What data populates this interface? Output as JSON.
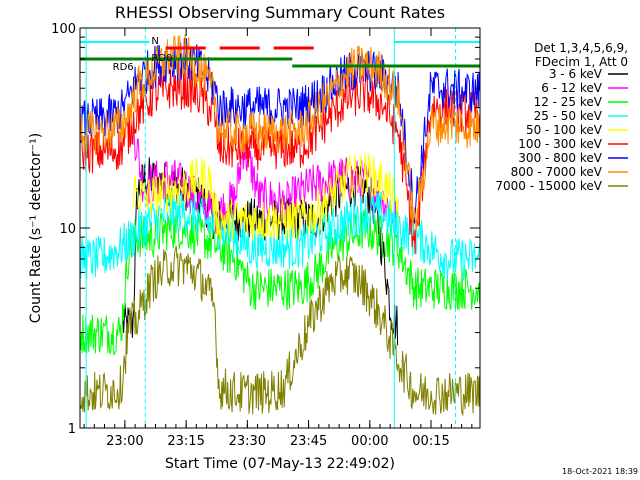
{
  "chart_data": {
    "type": "line",
    "title": "RHESSI Observing Summary Count Rates",
    "xlabel": "Start Time (07-May-13 22:49:02)",
    "ylabel": "Count Rate (s⁻¹ detector⁻¹)",
    "x_ticks": [
      "23:00",
      "23:15",
      "23:30",
      "23:45",
      "00:00",
      "00:15"
    ],
    "x_tick_minutes": [
      11,
      26,
      41,
      56,
      71,
      86
    ],
    "xlim_minutes": [
      0,
      98
    ],
    "yscale": "log",
    "ylim": [
      1,
      100
    ],
    "y_ticks": [
      1,
      10,
      100
    ],
    "y_tick_labels": [
      "1",
      "10",
      "100"
    ],
    "legend_header": [
      "Det 1,3,4,5,6,9,",
      "FDecim 1, Att 0"
    ],
    "legend_placement": "right",
    "annotations": [
      "N",
      "RD0",
      "RD6"
    ],
    "timestamp": "18-Oct-2021 18:39",
    "series": [
      {
        "name": "3 - 6 keV",
        "color": "#000000",
        "x": [
          10.5,
          13,
          14,
          16,
          20,
          25,
          30,
          33,
          34,
          36,
          38,
          40,
          42,
          46,
          50,
          52,
          54,
          56,
          58,
          62,
          66,
          70,
          72,
          74,
          75,
          76,
          77,
          78
        ],
        "y": [
          3.3,
          3.3,
          15,
          18,
          17,
          16,
          14,
          11,
          11,
          11,
          11,
          11,
          11,
          11,
          11,
          11,
          11,
          11,
          11,
          14,
          16,
          16,
          13,
          8,
          6,
          4,
          3.5,
          3.2
        ]
      },
      {
        "name": "6 - 12 keV",
        "color": "#ff00ff",
        "x": [
          13,
          14,
          15,
          16,
          18,
          22,
          26,
          30,
          32,
          33,
          34,
          36,
          38,
          40,
          42,
          44,
          46,
          48,
          50,
          52,
          56,
          60,
          64,
          70,
          74,
          78
        ],
        "y": [
          30,
          26,
          18,
          16,
          17,
          18,
          16,
          13,
          12,
          12,
          12,
          13,
          14,
          25,
          20,
          14,
          14,
          14,
          13,
          14,
          16,
          17,
          18,
          17,
          14,
          11
        ]
      },
      {
        "name": "12 - 25 keV",
        "color": "#00ff00",
        "x": [
          0,
          5,
          10,
          12,
          14,
          18,
          22,
          26,
          30,
          34,
          38,
          40,
          42,
          46,
          50,
          54,
          58,
          62,
          66,
          70,
          74,
          78,
          82,
          86,
          90,
          94,
          98
        ],
        "y": [
          3,
          3,
          3,
          8,
          9,
          9,
          10,
          10,
          9,
          8,
          7,
          6,
          5,
          5,
          5,
          5,
          6,
          8,
          9,
          10,
          9,
          8,
          5,
          5,
          5,
          5,
          5
        ]
      },
      {
        "name": "25 - 50 keV",
        "color": "#00ffff",
        "x": [
          0,
          5,
          10,
          13,
          15,
          18,
          22,
          26,
          30,
          34,
          38,
          42,
          46,
          50,
          54,
          58,
          62,
          66,
          70,
          74,
          78,
          82,
          86,
          90,
          94,
          98
        ],
        "y": [
          7,
          7,
          8,
          9,
          10,
          11,
          12,
          12,
          11,
          10,
          9,
          8,
          8,
          8,
          8,
          9,
          10,
          11,
          12,
          12,
          10,
          9,
          8,
          7,
          7,
          7
        ]
      },
      {
        "name": "50 - 100 keV",
        "color": "#ffff00",
        "x": [
          13,
          14,
          16,
          20,
          25,
          30,
          32,
          33,
          34,
          36,
          38,
          40,
          42,
          46,
          50,
          54,
          58,
          62,
          66,
          70,
          74,
          78
        ],
        "y": [
          16,
          15,
          14,
          15,
          16,
          18,
          17,
          12,
          11,
          11,
          11,
          11,
          11,
          11,
          11,
          11,
          12,
          15,
          18,
          19,
          17,
          13
        ]
      },
      {
        "name": "100 - 300 keV",
        "color": "#ff0000",
        "x": [
          0,
          5,
          10,
          12,
          14,
          18,
          22,
          26,
          30,
          33,
          34,
          38,
          42,
          46,
          50,
          52,
          54,
          58,
          62,
          66,
          70,
          74,
          78,
          82,
          86,
          90,
          94,
          98
        ],
        "y": [
          24,
          24,
          25,
          30,
          38,
          46,
          50,
          50,
          45,
          36,
          25,
          25,
          25,
          25,
          25,
          25,
          25,
          30,
          38,
          45,
          47,
          42,
          30,
          8,
          40,
          40,
          38,
          38
        ]
      },
      {
        "name": "300 - 800 keV",
        "color": "#0000ff",
        "x": [
          0,
          5,
          10,
          12,
          14,
          18,
          22,
          26,
          30,
          33,
          34,
          38,
          42,
          46,
          50,
          52,
          54,
          58,
          62,
          66,
          70,
          74,
          78,
          82,
          86,
          90,
          94,
          98
        ],
        "y": [
          34,
          35,
          38,
          45,
          55,
          64,
          70,
          70,
          62,
          50,
          40,
          40,
          40,
          40,
          40,
          40,
          40,
          45,
          52,
          60,
          62,
          58,
          48,
          12,
          50,
          50,
          48,
          48
        ]
      },
      {
        "name": "800 - 7000 keV",
        "color": "#ff8c00",
        "x": [
          0,
          5,
          10,
          12,
          14,
          18,
          22,
          26,
          30,
          33,
          34,
          38,
          42,
          46,
          50,
          54,
          58,
          62,
          66,
          70,
          74,
          78,
          82,
          86,
          90,
          94,
          98
        ],
        "y": [
          30,
          30,
          32,
          38,
          50,
          62,
          72,
          72,
          60,
          45,
          32,
          30,
          30,
          30,
          30,
          31,
          38,
          48,
          62,
          66,
          60,
          45,
          10,
          33,
          33,
          32,
          32
        ]
      },
      {
        "name": "7000 - 15000 keV",
        "color": "#808000",
        "x": [
          0,
          5,
          10,
          12,
          14,
          16,
          18,
          22,
          26,
          30,
          33,
          34,
          38,
          42,
          46,
          50,
          54,
          58,
          62,
          66,
          70,
          74,
          78,
          82,
          86,
          90,
          94,
          98
        ],
        "y": [
          1.5,
          1.5,
          1.6,
          3.2,
          3.5,
          4.5,
          5.5,
          6.5,
          6.5,
          5.5,
          4,
          1.6,
          1.5,
          1.5,
          1.5,
          1.6,
          2.6,
          4,
          5.5,
          6,
          5,
          3.5,
          2.2,
          1.5,
          1.5,
          1.5,
          1.5,
          1.5
        ]
      }
    ]
  }
}
